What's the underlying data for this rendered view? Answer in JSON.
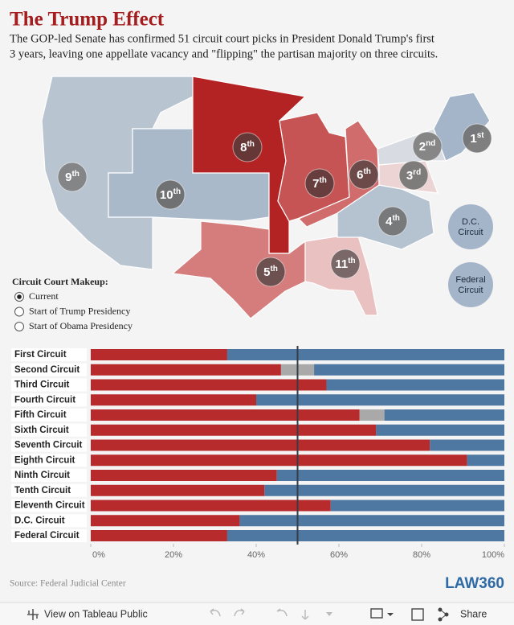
{
  "header": {
    "title": "The Trump Effect",
    "subtitle_lines": [
      "The GOP-led Senate has confirmed 51 circuit court picks in President Donald Trump's first",
      "3 years, leaving one appellate vacancy and \"flipping\" the partisan majority on three circuits."
    ]
  },
  "map": {
    "badges": [
      {
        "number": "9",
        "suffix": "th"
      },
      {
        "number": "10",
        "suffix": "th"
      },
      {
        "number": "8",
        "suffix": "th"
      },
      {
        "number": "7",
        "suffix": "th"
      },
      {
        "number": "6",
        "suffix": "th"
      },
      {
        "number": "5",
        "suffix": "th"
      },
      {
        "number": "11",
        "suffix": "th"
      },
      {
        "number": "4",
        "suffix": "th"
      },
      {
        "number": "3",
        "suffix": "rd"
      },
      {
        "number": "2",
        "suffix": "nd"
      },
      {
        "number": "1",
        "suffix": "st"
      }
    ],
    "special_circuits": [
      {
        "lines": [
          "D.C.",
          "Circuit"
        ]
      },
      {
        "lines": [
          "Federal",
          "Circuit"
        ]
      }
    ]
  },
  "legend": {
    "title": "Circuit Court Makeup:",
    "options": [
      "Current",
      "Start of Trump Presidency",
      "Start of Obama Presidency"
    ],
    "selected": 0
  },
  "chart_data": {
    "type": "stacked_bar_horizontal",
    "categories": [
      "First Circuit",
      "Second Circuit",
      "Third Circuit",
      "Fourth Circuit",
      "Fifth Circuit",
      "Sixth Circuit",
      "Seventh Circuit",
      "Eighth Circuit",
      "Ninth Circuit",
      "Tenth Circuit",
      "Eleventh Circuit",
      "D.C. Circuit",
      "Federal Circuit"
    ],
    "series": [
      {
        "color": "#b82b2d",
        "values": [
          33,
          46,
          57,
          40,
          65,
          69,
          82,
          91,
          45,
          42,
          58,
          36,
          33
        ]
      },
      {
        "color": "#a9a9a9",
        "values": [
          0,
          8,
          0,
          0,
          6,
          0,
          0,
          0,
          0,
          0,
          0,
          0,
          0
        ]
      },
      {
        "color": "#4e77a1",
        "values": [
          67,
          46,
          43,
          60,
          29,
          31,
          18,
          9,
          55,
          58,
          42,
          64,
          67
        ]
      }
    ],
    "xlim": [
      0,
      100
    ],
    "xticks": [
      {
        "value": 0,
        "label": "0%"
      },
      {
        "value": 20,
        "label": "20%"
      },
      {
        "value": 40,
        "label": "40%"
      },
      {
        "value": 60,
        "label": "60%"
      },
      {
        "value": 80,
        "label": "80%"
      },
      {
        "value": 100,
        "label": "100%"
      }
    ],
    "reference_line": 50
  },
  "footer": {
    "source": "Source: Federal Judicial Center",
    "logo": "LAW360"
  },
  "toolbar": {
    "view": "View on Tableau Public",
    "share": "Share"
  }
}
